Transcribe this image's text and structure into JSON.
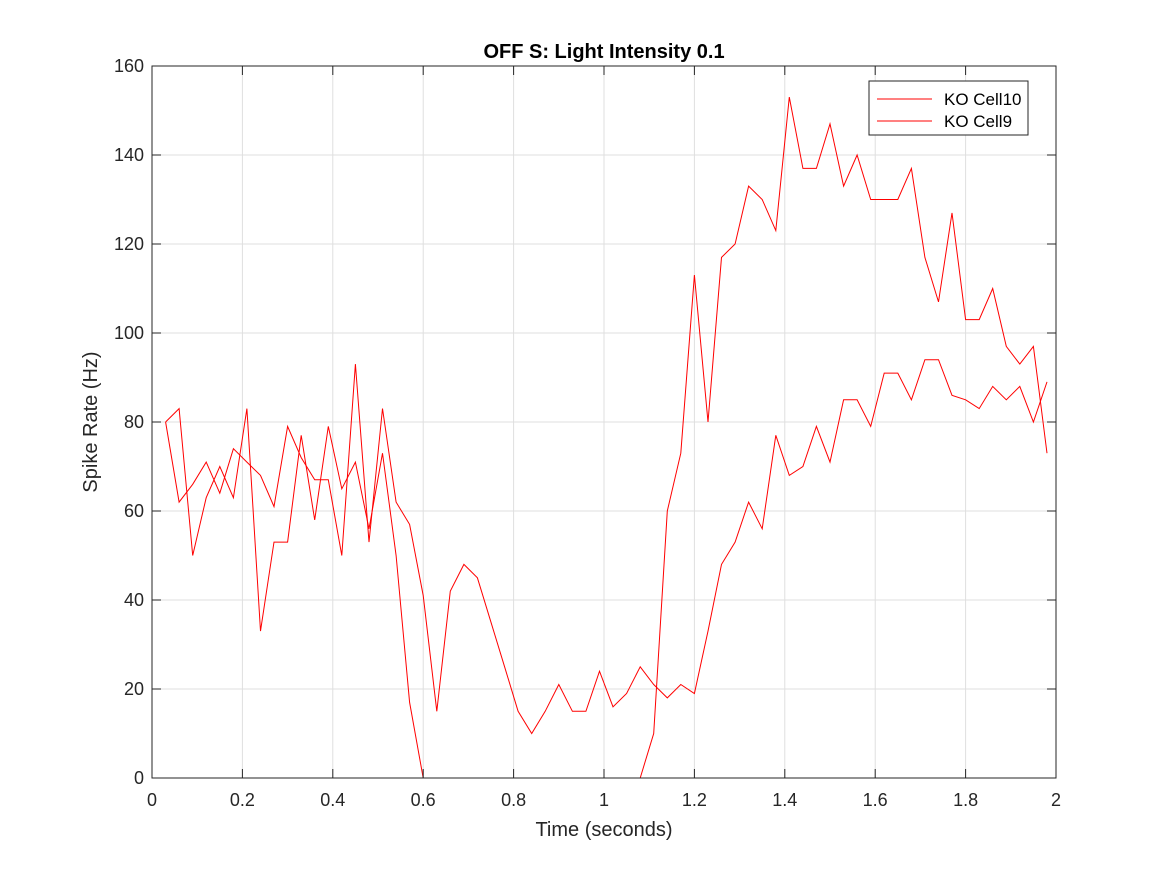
{
  "chart_data": {
    "type": "line",
    "title": "OFF S: Light Intensity 0.1",
    "xlabel": "Time (seconds)",
    "ylabel": "Spike Rate (Hz)",
    "xlim": [
      0,
      2
    ],
    "ylim": [
      0,
      160
    ],
    "xticks": [
      0,
      0.2,
      0.4,
      0.6,
      0.8,
      1,
      1.2,
      1.4,
      1.6,
      1.8,
      2
    ],
    "xtick_labels": [
      "0",
      "0.2",
      "0.4",
      "0.6",
      "0.8",
      "1",
      "1.2",
      "1.4",
      "1.6",
      "1.8",
      "2"
    ],
    "yticks": [
      0,
      20,
      40,
      60,
      80,
      100,
      120,
      140,
      160
    ],
    "ytick_labels": [
      "0",
      "20",
      "40",
      "60",
      "80",
      "100",
      "120",
      "140",
      "160"
    ],
    "grid": true,
    "legend_position": "top-right",
    "series_color": "#ff0000",
    "x": [
      0.03,
      0.06,
      0.09,
      0.12,
      0.15,
      0.18,
      0.21,
      0.24,
      0.27,
      0.3,
      0.33,
      0.36,
      0.39,
      0.42,
      0.45,
      0.48,
      0.51,
      0.54,
      0.57,
      0.6,
      0.63,
      0.66,
      0.69,
      0.72,
      0.75,
      0.78,
      0.81,
      0.84,
      0.87,
      0.9,
      0.93,
      0.96,
      0.99,
      1.02,
      1.05,
      1.08,
      1.11,
      1.14,
      1.17,
      1.2,
      1.23,
      1.26,
      1.29,
      1.32,
      1.35,
      1.38,
      1.41,
      1.44,
      1.47,
      1.5,
      1.53,
      1.56,
      1.59,
      1.62,
      1.65,
      1.68,
      1.71,
      1.74,
      1.77,
      1.8,
      1.83,
      1.86,
      1.89,
      1.92,
      1.95,
      1.98
    ],
    "series": [
      {
        "name": "KO Cell10",
        "values": [
          80,
          62,
          66,
          71,
          64,
          74,
          71,
          68,
          61,
          79,
          72,
          67,
          67,
          50,
          93,
          53,
          83,
          62,
          57,
          41,
          15,
          42,
          48,
          45,
          35,
          25,
          15,
          10,
          15,
          21,
          15,
          15,
          24,
          16,
          19,
          25,
          21,
          18,
          21,
          19,
          33,
          48,
          53,
          62,
          56,
          77,
          68,
          70,
          79,
          71,
          85,
          85,
          79,
          91,
          91,
          85,
          94,
          94,
          86,
          85,
          83,
          88,
          85,
          88,
          80,
          89
        ]
      },
      {
        "name": "KO Cell9",
        "values": [
          80,
          83,
          50,
          63,
          70,
          63,
          83,
          33,
          53,
          53,
          77,
          58,
          79,
          65,
          71,
          56,
          73,
          50,
          17,
          0,
          0,
          0,
          0,
          0,
          0,
          0,
          0,
          0,
          0,
          0,
          0,
          0,
          0,
          0,
          0,
          0,
          10,
          60,
          73,
          113,
          80,
          117,
          120,
          133,
          130,
          123,
          153,
          137,
          137,
          147,
          133,
          140,
          130,
          130,
          130,
          137,
          117,
          107,
          127,
          103,
          103,
          110,
          97,
          93,
          97,
          73
        ]
      }
    ]
  }
}
